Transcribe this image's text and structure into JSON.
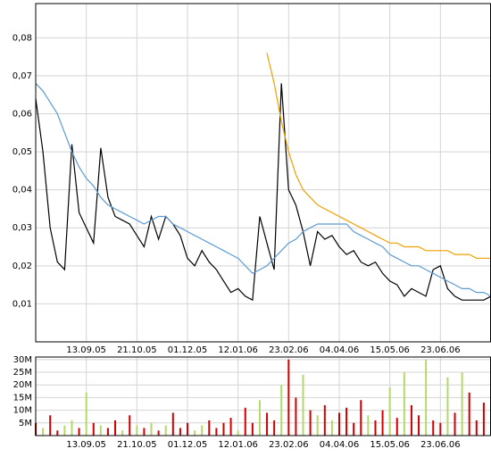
{
  "chart_data": [
    {
      "type": "line",
      "x": [
        0,
        4,
        8,
        12,
        16,
        20,
        24,
        28,
        32,
        36,
        40,
        44,
        48,
        52,
        56,
        60,
        64,
        68,
        72,
        76,
        80,
        84,
        88,
        92,
        96,
        100,
        104,
        108,
        112,
        116,
        120,
        124,
        128,
        132,
        136,
        140,
        144,
        148,
        152,
        156,
        160,
        164,
        168,
        172,
        176,
        180,
        184,
        188,
        192,
        196,
        200,
        204,
        208,
        212,
        216,
        220,
        224,
        228,
        232,
        236,
        240,
        244,
        248,
        252
      ],
      "xlim": [
        0,
        252
      ],
      "xticks": [
        {
          "value": 28,
          "label": "13.09.05"
        },
        {
          "value": 56,
          "label": "21.10.05"
        },
        {
          "value": 84,
          "label": "01.12.05"
        },
        {
          "value": 112,
          "label": "12.01.06"
        },
        {
          "value": 140,
          "label": "23.02.06"
        },
        {
          "value": 168,
          "label": "04.04.06"
        },
        {
          "value": 196,
          "label": "15.05.06"
        },
        {
          "value": 224,
          "label": "23.06.06"
        }
      ],
      "ylim": [
        0,
        0.089
      ],
      "yticks": [
        {
          "value": 0.01,
          "label": "0,01"
        },
        {
          "value": 0.02,
          "label": "0,02"
        },
        {
          "value": 0.03,
          "label": "0,03"
        },
        {
          "value": 0.04,
          "label": "0,04"
        },
        {
          "value": 0.05,
          "label": "0,05"
        },
        {
          "value": 0.06,
          "label": "0,06"
        },
        {
          "value": 0.07,
          "label": "0,07"
        },
        {
          "value": 0.08,
          "label": "0,08"
        }
      ],
      "grid": true,
      "series": [
        {
          "color": "#000000",
          "values": [
            0.064,
            0.05,
            0.03,
            0.021,
            0.019,
            0.052,
            0.034,
            0.03,
            0.026,
            0.051,
            0.038,
            0.033,
            0.032,
            0.031,
            0.028,
            0.025,
            0.033,
            0.027,
            0.033,
            0.031,
            0.028,
            0.022,
            0.02,
            0.024,
            0.021,
            0.019,
            0.016,
            0.013,
            0.014,
            0.012,
            0.011,
            0.033,
            0.026,
            0.019,
            0.068,
            0.04,
            0.036,
            0.029,
            0.02,
            0.029,
            0.027,
            0.028,
            0.025,
            0.023,
            0.024,
            0.021,
            0.02,
            0.021,
            0.018,
            0.016,
            0.015,
            0.012,
            0.014,
            0.013,
            0.012,
            0.019,
            0.02,
            0.014,
            0.012,
            0.011,
            0.011,
            0.011,
            0.011,
            0.012
          ]
        },
        {
          "color": "#5b9bd5",
          "values": [
            0.068,
            0.066,
            0.063,
            0.06,
            0.055,
            0.05,
            0.046,
            0.043,
            0.041,
            0.038,
            0.036,
            0.035,
            0.034,
            0.033,
            0.032,
            0.031,
            0.032,
            0.033,
            0.033,
            0.031,
            0.03,
            0.029,
            0.028,
            0.027,
            0.026,
            0.025,
            0.024,
            0.023,
            0.022,
            0.02,
            0.018,
            0.019,
            0.02,
            0.022,
            0.024,
            0.026,
            0.027,
            0.029,
            0.03,
            0.031,
            0.031,
            0.031,
            0.031,
            0.031,
            0.029,
            0.028,
            0.027,
            0.026,
            0.025,
            0.023,
            0.022,
            0.021,
            0.02,
            0.02,
            0.019,
            0.018,
            0.017,
            0.016,
            0.015,
            0.014,
            0.014,
            0.013,
            0.013,
            0.012
          ]
        },
        {
          "color": "#f0a000",
          "values": [
            null,
            null,
            null,
            null,
            null,
            null,
            null,
            null,
            null,
            null,
            null,
            null,
            null,
            null,
            null,
            null,
            null,
            null,
            null,
            null,
            null,
            null,
            null,
            null,
            null,
            null,
            null,
            null,
            null,
            null,
            null,
            null,
            0.076,
            0.068,
            0.058,
            0.05,
            0.044,
            0.04,
            0.038,
            0.036,
            0.035,
            0.034,
            0.033,
            0.032,
            0.031,
            0.03,
            0.029,
            0.028,
            0.027,
            0.026,
            0.026,
            0.025,
            0.025,
            0.025,
            0.024,
            0.024,
            0.024,
            0.024,
            0.023,
            0.023,
            0.023,
            0.022,
            0.022,
            0.022
          ]
        }
      ]
    },
    {
      "type": "bar",
      "x": [
        0,
        4,
        8,
        12,
        16,
        20,
        24,
        28,
        32,
        36,
        40,
        44,
        48,
        52,
        56,
        60,
        64,
        68,
        72,
        76,
        80,
        84,
        88,
        92,
        96,
        100,
        104,
        108,
        112,
        116,
        120,
        124,
        128,
        132,
        136,
        140,
        144,
        148,
        152,
        156,
        160,
        164,
        168,
        172,
        176,
        180,
        184,
        188,
        192,
        196,
        200,
        204,
        208,
        212,
        216,
        220,
        224,
        228,
        232,
        236,
        240,
        244,
        248,
        252
      ],
      "xlim": [
        0,
        252
      ],
      "xticks": [
        {
          "value": 28,
          "label": "13.09.05"
        },
        {
          "value": 56,
          "label": "21.10.05"
        },
        {
          "value": 84,
          "label": "01.12.05"
        },
        {
          "value": 112,
          "label": "12.01.06"
        },
        {
          "value": 140,
          "label": "23.02.06"
        },
        {
          "value": 168,
          "label": "04.04.06"
        },
        {
          "value": 196,
          "label": "15.05.06"
        },
        {
          "value": 224,
          "label": "23.06.06"
        }
      ],
      "ylim": [
        0,
        31000000
      ],
      "yticks": [
        {
          "value": 5000000,
          "label": "5M"
        },
        {
          "value": 10000000,
          "label": "10M"
        },
        {
          "value": 15000000,
          "label": "15M"
        },
        {
          "value": 20000000,
          "label": "20M"
        },
        {
          "value": 25000000,
          "label": "25M"
        },
        {
          "value": 30000000,
          "label": "30M"
        }
      ],
      "grid": true,
      "values": [
        5000000,
        3000000,
        8000000,
        2000000,
        4000000,
        6000000,
        3000000,
        17000000,
        5000000,
        4000000,
        3000000,
        6000000,
        2000000,
        8000000,
        4000000,
        3000000,
        5000000,
        2000000,
        4000000,
        9000000,
        3000000,
        5000000,
        2000000,
        4000000,
        6000000,
        3000000,
        5000000,
        7000000,
        2000000,
        11000000,
        5000000,
        14000000,
        9000000,
        6000000,
        20000000,
        30000000,
        15000000,
        24000000,
        10000000,
        8000000,
        12000000,
        6000000,
        9000000,
        11000000,
        5000000,
        14000000,
        8000000,
        6000000,
        10000000,
        19000000,
        7000000,
        25000000,
        12000000,
        8000000,
        30000000,
        6000000,
        5000000,
        23000000,
        9000000,
        25000000,
        17000000,
        6000000,
        13000000,
        8000000
      ],
      "colors": [
        "#d00000",
        "#b5d86a",
        "#d00000",
        "#d00000",
        "#b5d86a",
        "#b5d86a",
        "#d00000",
        "#b5d86a",
        "#d00000",
        "#b5d86a",
        "#d00000",
        "#d00000",
        "#b5d86a",
        "#d00000",
        "#b5d86a",
        "#d00000",
        "#b5d86a",
        "#d00000",
        "#b5d86a",
        "#d00000",
        "#d00000",
        "#d00000",
        "#b5d86a",
        "#b5d86a",
        "#d00000",
        "#d00000",
        "#d00000",
        "#d00000",
        "#b5d86a",
        "#d00000",
        "#d00000",
        "#b5d86a",
        "#d00000",
        "#d00000",
        "#b5d86a",
        "#d00000",
        "#d00000",
        "#b5d86a",
        "#d00000",
        "#b5d86a",
        "#d00000",
        "#b5d86a",
        "#d00000",
        "#d00000",
        "#d00000",
        "#d00000",
        "#b5d86a",
        "#d00000",
        "#d00000",
        "#b5d86a",
        "#d00000",
        "#b5d86a",
        "#d00000",
        "#d00000",
        "#b5d86a",
        "#d00000",
        "#d00000",
        "#b5d86a",
        "#d00000",
        "#b5d86a",
        "#d00000",
        "#d00000",
        "#d00000",
        "#d00000"
      ]
    }
  ]
}
